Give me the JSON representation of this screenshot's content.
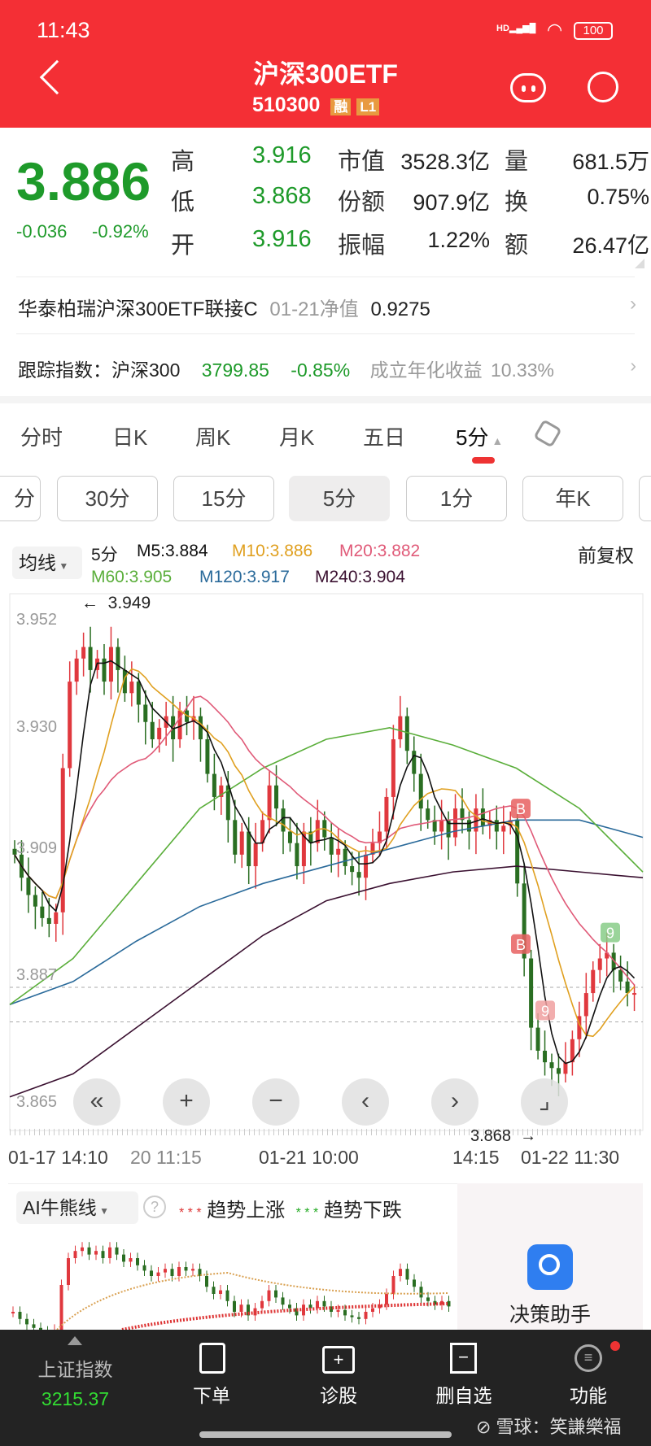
{
  "status": {
    "time": "11:43",
    "battery": "100",
    "network": "HD"
  },
  "header": {
    "title": "沪深300ETF",
    "code": "510300",
    "badges": [
      "融",
      "L1"
    ]
  },
  "quote": {
    "price": "3.886",
    "change": "-0.036",
    "change_pct": "-0.92%",
    "rows": [
      {
        "label": "高",
        "value": "3.916",
        "k2": "市值",
        "v2": "3528.3亿",
        "k3": "量",
        "v3": "681.5万"
      },
      {
        "label": "低",
        "value": "3.868",
        "k2": "份额",
        "v2": "907.9亿",
        "k3": "换",
        "v3": "0.75%"
      },
      {
        "label": "开",
        "value": "3.916",
        "k2": "振幅",
        "v2": "1.22%",
        "k3": "额",
        "v3": "26.47亿"
      }
    ]
  },
  "fund": {
    "name": "华泰柏瑞沪深300ETF联接C",
    "date_label": "01-21净值",
    "nav": "0.9275"
  },
  "tracking": {
    "label": "跟踪指数：沪深300",
    "value": "3799.85",
    "change": "-0.85%",
    "return_label": "成立年化收益",
    "return": "10.33%"
  },
  "tabs": [
    "分时",
    "日K",
    "周K",
    "月K",
    "五日",
    "5分"
  ],
  "active_tab": "5分",
  "subtabs": [
    "分",
    "30分",
    "15分",
    "5分",
    "1分",
    "年K"
  ],
  "active_subtab": "5分",
  "legend": {
    "selector": "均线",
    "period": "5分",
    "adjust": "前复权",
    "items": [
      {
        "text": "M5:3.884",
        "color": "#111111"
      },
      {
        "text": "M10:3.886",
        "color": "#e0a020"
      },
      {
        "text": "M20:3.882",
        "color": "#e05a78"
      },
      {
        "text": "M60:3.905",
        "color": "#5aae3a"
      },
      {
        "text": "M120:3.917",
        "color": "#2a6a9a"
      },
      {
        "text": "M240:3.904",
        "color": "#3a1030"
      }
    ]
  },
  "chart_data": {
    "type": "candlestick",
    "y_ticks": [
      "3.952",
      "3.930",
      "3.909",
      "3.887",
      "3.865"
    ],
    "ylim": [
      3.865,
      3.952
    ],
    "x_ticks": [
      "01-17 14:10",
      "20 11:15",
      "01-21 10:00",
      "14:15",
      "01-22 11:30"
    ],
    "max_label": "3.949",
    "min_label": "3.868",
    "closes": [
      3.91,
      3.906,
      3.903,
      3.901,
      3.899,
      3.898,
      3.9,
      3.925,
      3.94,
      3.944,
      3.946,
      3.942,
      3.944,
      3.94,
      3.946,
      3.942,
      3.938,
      3.94,
      3.936,
      3.933,
      3.93,
      3.932,
      3.934,
      3.93,
      3.935,
      3.933,
      3.934,
      3.93,
      3.924,
      3.92,
      3.922,
      3.916,
      3.91,
      3.914,
      3.908,
      3.912,
      3.916,
      3.922,
      3.918,
      3.914,
      3.912,
      3.908,
      3.914,
      3.912,
      3.916,
      3.913,
      3.91,
      3.911,
      3.908,
      3.907,
      3.906,
      3.91,
      3.912,
      3.914,
      3.92,
      3.93,
      3.934,
      3.928,
      3.924,
      3.918,
      3.916,
      3.914,
      3.916,
      3.913,
      3.918,
      3.916,
      3.914,
      3.918,
      3.915,
      3.916,
      3.914,
      3.915,
      3.916,
      3.905,
      3.892,
      3.88,
      3.876,
      3.874,
      3.873,
      3.872,
      3.874,
      3.878,
      3.882,
      3.886,
      3.89,
      3.892,
      3.893,
      3.89,
      3.888,
      3.886,
      3.886
    ],
    "m60": [
      3.884,
      3.892,
      3.905,
      3.918,
      3.925,
      3.93,
      3.932,
      3.929,
      3.925,
      3.918,
      3.907
    ],
    "m120": [
      3.884,
      3.888,
      3.895,
      3.901,
      3.905,
      3.908,
      3.911,
      3.914,
      3.916,
      3.916,
      3.913
    ],
    "m240": [
      3.868,
      3.872,
      3.88,
      3.888,
      3.896,
      3.902,
      3.905,
      3.907,
      3.908,
      3.907,
      3.906
    ],
    "ref_lines": [
      3.887,
      3.881
    ]
  },
  "ai_panel": {
    "selector": "AI牛熊线",
    "up_label": "趋势上涨",
    "down_label": "趋势下跌",
    "assistant": "决策助手"
  },
  "bottom": {
    "index_name": "上证指数",
    "index_value": "3215.37",
    "items": [
      "下单",
      "诊股",
      "删自选",
      "功能"
    ],
    "watermark": "雪球：笑謙樂福"
  }
}
